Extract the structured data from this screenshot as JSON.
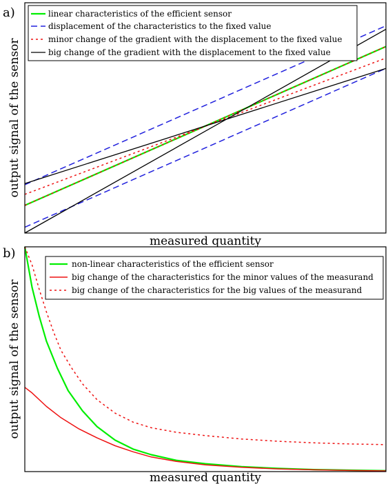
{
  "chart_data": [
    {
      "panel_label": "a)",
      "type": "line",
      "xlabel": "measured quantity",
      "ylabel": "output signal of the sensor",
      "xlim": [
        0,
        1
      ],
      "ylim": [
        0,
        1
      ],
      "axes_ticks": false,
      "grid": false,
      "legend_position": "top",
      "series": [
        {
          "name": "linear characteristics of the efficient sensor",
          "color": "#00ee00",
          "dash": "solid",
          "width": 2.2,
          "lines": [
            {
              "x": [
                0,
                1
              ],
              "y": [
                0.12,
                0.81
              ]
            }
          ]
        },
        {
          "name": "displacement of the characteristics to the fixed value",
          "color": "#2020dd",
          "dash": "dashed",
          "width": 1.5,
          "lines": [
            {
              "x": [
                0,
                1
              ],
              "y": [
                0.21,
                0.9
              ]
            },
            {
              "x": [
                0,
                1
              ],
              "y": [
                0.025,
                0.715
              ]
            }
          ]
        },
        {
          "name": "minor change of the gradient with the displacement to the fixed value",
          "color": "#ee1111",
          "dash": "dotted",
          "width": 1.5,
          "lines": [
            {
              "x": [
                0,
                1
              ],
              "y": [
                0.168,
                0.76
              ]
            },
            {
              "x": [
                0,
                1
              ],
              "y": [
                0.12,
                0.81
              ]
            }
          ]
        },
        {
          "name": "big change of the gradient with the displacement to the fixed value",
          "color": "#000000",
          "dash": "solid",
          "width": 1.3,
          "lines": [
            {
              "x": [
                0,
                1
              ],
              "y": [
                0.0,
                0.885
              ]
            },
            {
              "x": [
                0,
                1
              ],
              "y": [
                0.215,
                0.715
              ]
            }
          ]
        }
      ]
    },
    {
      "panel_label": "b)",
      "type": "line",
      "xlabel": "measured quantity",
      "ylabel": "output signal of the sensor",
      "xlim": [
        0,
        1
      ],
      "ylim": [
        0,
        1
      ],
      "axes_ticks": false,
      "grid": false,
      "legend_position": "top-right",
      "series": [
        {
          "name": "non-linear characteristics of the efficient sensor",
          "color": "#00ee00",
          "dash": "solid",
          "width": 2.2,
          "x": [
            0,
            0.02,
            0.04,
            0.06,
            0.09,
            0.12,
            0.16,
            0.2,
            0.25,
            0.3,
            0.35,
            0.42,
            0.5,
            0.6,
            0.7,
            0.8,
            0.9,
            1.0
          ],
          "y": [
            1.0,
            0.82,
            0.69,
            0.58,
            0.46,
            0.36,
            0.27,
            0.2,
            0.14,
            0.1,
            0.075,
            0.05,
            0.035,
            0.022,
            0.014,
            0.009,
            0.006,
            0.004
          ]
        },
        {
          "name": "big change of the characteristics for the minor values of the measurand",
          "color": "#ee1111",
          "dash": "solid",
          "width": 1.5,
          "x": [
            0,
            0.02,
            0.06,
            0.1,
            0.15,
            0.2,
            0.25,
            0.3,
            0.35,
            0.42,
            0.5,
            0.6,
            0.7,
            0.8,
            0.9,
            1.0
          ],
          "y": [
            0.375,
            0.35,
            0.29,
            0.24,
            0.19,
            0.15,
            0.115,
            0.088,
            0.065,
            0.045,
            0.03,
            0.019,
            0.012,
            0.008,
            0.005,
            0.003
          ]
        },
        {
          "name": "big change of the characteristics for the big values of the measurand",
          "color": "#ee1111",
          "dash": "dotted",
          "width": 1.5,
          "x": [
            0,
            0.02,
            0.04,
            0.06,
            0.08,
            0.1,
            0.13,
            0.16,
            0.2,
            0.25,
            0.3,
            0.35,
            0.42,
            0.5,
            0.6,
            0.7,
            0.8,
            0.9,
            1.0
          ],
          "y": [
            1.0,
            0.92,
            0.81,
            0.71,
            0.62,
            0.54,
            0.46,
            0.39,
            0.32,
            0.26,
            0.22,
            0.195,
            0.175,
            0.16,
            0.145,
            0.135,
            0.128,
            0.123,
            0.12
          ]
        }
      ]
    }
  ]
}
